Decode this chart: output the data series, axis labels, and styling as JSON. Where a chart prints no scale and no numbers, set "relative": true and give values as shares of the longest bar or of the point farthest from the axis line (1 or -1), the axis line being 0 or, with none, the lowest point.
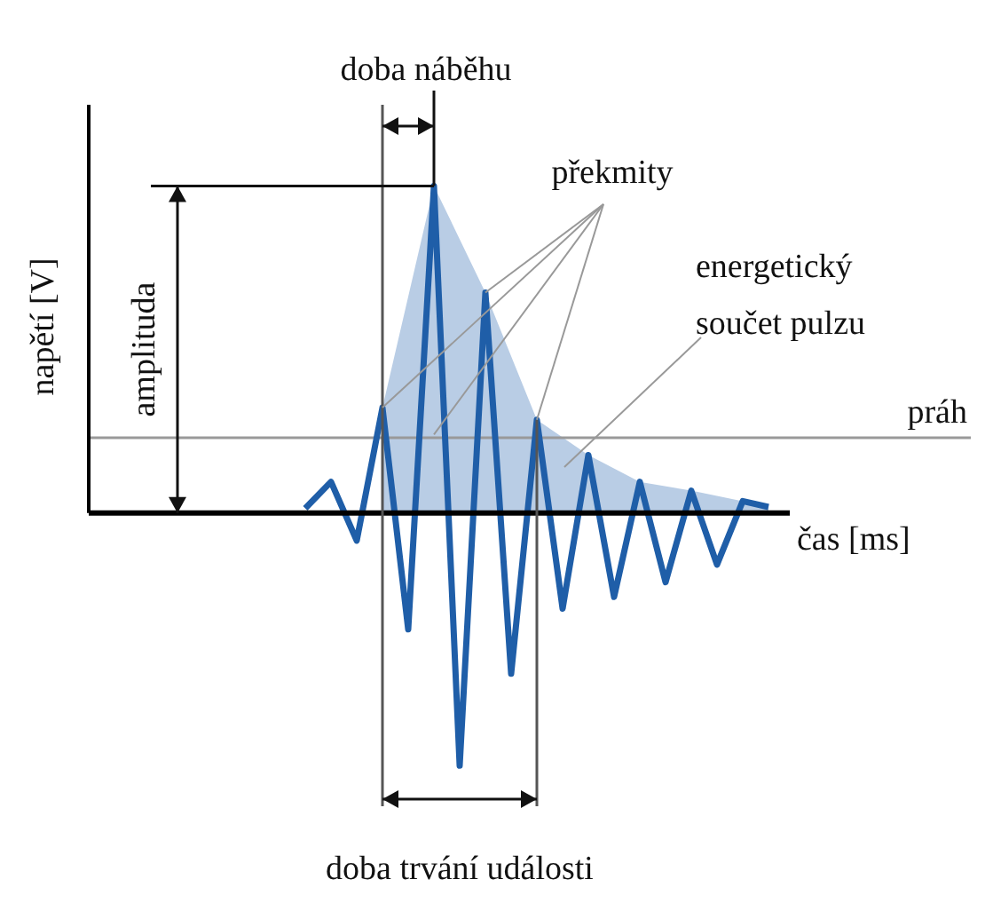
{
  "chart_data": {
    "type": "line",
    "relative": true,
    "xlabel": "čas [ms]",
    "tick_labels": false,
    "marker": "none",
    "categories": [
      null,
      null,
      null,
      null,
      null,
      null,
      null,
      null,
      null,
      null,
      null,
      null,
      null,
      null,
      null,
      null,
      null,
      null,
      null
    ],
    "series": [
      {
        "color": "#1f5ea8",
        "values": [
          0.014,
          0.095,
          -0.085,
          0.322,
          -0.356,
          1,
          -0.773,
          0.674,
          -0.492,
          0.285,
          -0.293,
          0.177,
          -0.257,
          0.095,
          -0.212,
          0.068,
          -0.158,
          0.036,
          0.018
        ]
      }
    ],
    "ref_lines": [
      {
        "axis": "y",
        "value": 0.23,
        "label": "práh",
        "color": "#999999"
      }
    ],
    "annotations": [
      "doba náběhu",
      "překmity",
      "energetický součet pulzu",
      "amplituda",
      "doba trvání události",
      "napětí [V]"
    ]
  }
}
